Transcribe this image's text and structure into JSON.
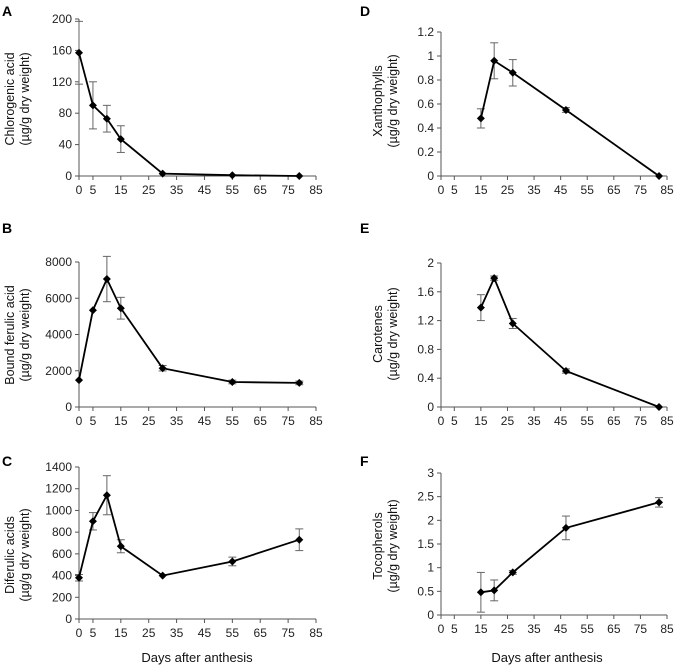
{
  "chart_data": [
    {
      "id": "A",
      "type": "line",
      "ylabel_lines": [
        "Chlorogenic acid",
        "(µg/g dry weight)"
      ],
      "xlabel": "",
      "xlim": [
        0,
        85
      ],
      "ylim": [
        0,
        200
      ],
      "xticks": [
        "0",
        "5",
        "15",
        "25",
        "35",
        "45",
        "55",
        "65",
        "75",
        "85"
      ],
      "yticks": [
        "0",
        "40",
        "80",
        "120",
        "160",
        "200"
      ],
      "x": [
        0,
        5,
        10,
        15,
        30,
        55,
        79
      ],
      "y": [
        157,
        90,
        73,
        47,
        3,
        1,
        0
      ],
      "err": [
        40,
        30,
        17,
        17,
        0,
        0,
        0
      ]
    },
    {
      "id": "B",
      "type": "line",
      "ylabel_lines": [
        "Bound ferulic acid",
        "(µg/g dry weight)"
      ],
      "xlabel": "",
      "xlim": [
        0,
        85
      ],
      "ylim": [
        0,
        8000
      ],
      "xticks": [
        "0",
        "5",
        "15",
        "25",
        "35",
        "45",
        "55",
        "65",
        "75",
        "85"
      ],
      "yticks": [
        "0",
        "2000",
        "4000",
        "6000",
        "8000"
      ],
      "x": [
        0,
        5,
        10,
        15,
        30,
        55,
        79
      ],
      "y": [
        1480,
        5340,
        7060,
        5450,
        2140,
        1380,
        1330
      ],
      "err": [
        0,
        0,
        1250,
        600,
        150,
        100,
        100
      ]
    },
    {
      "id": "C",
      "type": "line",
      "ylabel_lines": [
        "Diferulic acids",
        "(µg/g dry weight)"
      ],
      "xlabel": "Days after anthesis",
      "xlim": [
        0,
        85
      ],
      "ylim": [
        0,
        1400
      ],
      "xticks": [
        "0",
        "5",
        "15",
        "25",
        "35",
        "45",
        "55",
        "65",
        "75",
        "85"
      ],
      "yticks": [
        "0",
        "200",
        "400",
        "600",
        "800",
        "1000",
        "1200",
        "1400"
      ],
      "x": [
        0,
        5,
        10,
        15,
        30,
        55,
        79
      ],
      "y": [
        380,
        900,
        1140,
        670,
        400,
        530,
        730
      ],
      "err": [
        30,
        80,
        180,
        60,
        0,
        40,
        100
      ]
    },
    {
      "id": "D",
      "type": "line",
      "ylabel_lines": [
        "Xanthophylls",
        "(µg/g dry weight)"
      ],
      "xlabel": "",
      "xlim": [
        0,
        85
      ],
      "ylim": [
        0,
        1.2
      ],
      "xticks": [
        "0",
        "5",
        "15",
        "25",
        "35",
        "45",
        "55",
        "65",
        "75",
        "85"
      ],
      "yticks": [
        "0",
        "0.2",
        "0.4",
        "0.6",
        "0.8",
        "1",
        "1.2"
      ],
      "x": [
        15,
        20,
        27,
        47,
        82
      ],
      "y": [
        0.48,
        0.96,
        0.86,
        0.55,
        0
      ],
      "err": [
        0.08,
        0.15,
        0.11,
        0.02,
        0
      ]
    },
    {
      "id": "E",
      "type": "line",
      "ylabel_lines": [
        "Carotenes",
        "(µg/g dry weight)"
      ],
      "xlabel": "",
      "xlim": [
        0,
        85
      ],
      "ylim": [
        0,
        2
      ],
      "xticks": [
        "0",
        "5",
        "15",
        "25",
        "35",
        "45",
        "55",
        "65",
        "75",
        "85"
      ],
      "yticks": [
        "0",
        "0.4",
        "0.8",
        "1.2",
        "1.6",
        "2"
      ],
      "x": [
        15,
        20,
        27,
        47,
        82
      ],
      "y": [
        1.38,
        1.79,
        1.16,
        0.5,
        0
      ],
      "err": [
        0.18,
        0.03,
        0.07,
        0.03,
        0
      ]
    },
    {
      "id": "F",
      "type": "line",
      "ylabel_lines": [
        "Tocopherols",
        "(µg/g dry weight)"
      ],
      "xlabel": "Days after anthesis",
      "xlim": [
        0,
        85
      ],
      "ylim": [
        0,
        3
      ],
      "xticks": [
        "0",
        "5",
        "15",
        "25",
        "35",
        "45",
        "55",
        "65",
        "75",
        "85"
      ],
      "yticks": [
        "0",
        "0.5",
        "1",
        "1.5",
        "2",
        "2.5",
        "3"
      ],
      "x": [
        15,
        20,
        27,
        47,
        82
      ],
      "y": [
        0.48,
        0.52,
        0.9,
        1.84,
        2.38
      ],
      "err": [
        0.42,
        0.22,
        0.04,
        0.25,
        0.1
      ]
    }
  ]
}
